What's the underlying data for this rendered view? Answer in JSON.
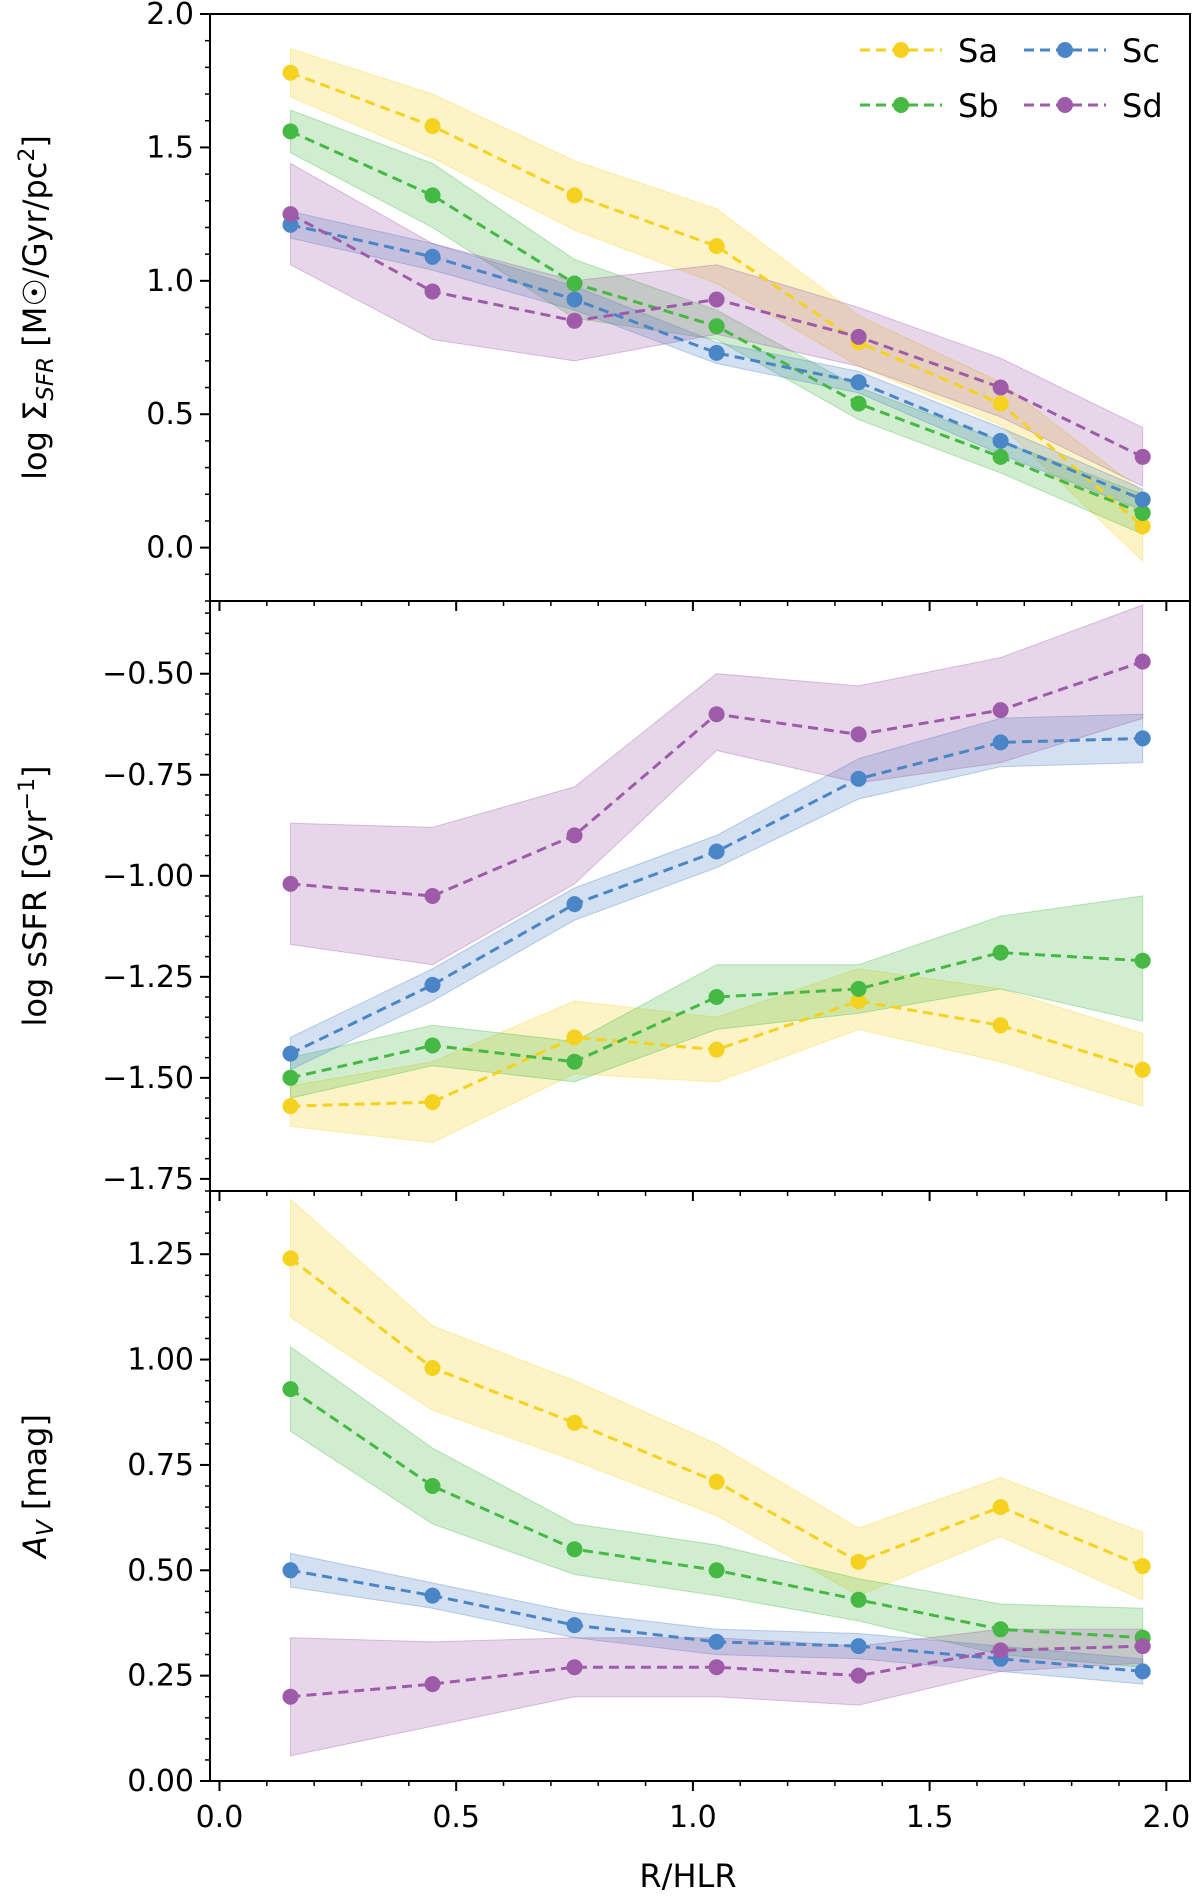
{
  "figure": {
    "xlabel": "R/HLR",
    "legend": [
      "Sa",
      "Sb",
      "Sc",
      "Sd"
    ]
  },
  "chart_data": [
    {
      "type": "line",
      "ylabel": "log Σ_SFR [M☉/Gyr/pc²]",
      "ylim": [
        -0.2,
        2.0
      ],
      "xlim": [
        -0.02,
        2.05
      ],
      "yticks": [
        "0.0",
        "0.5",
        "1.0",
        "1.5",
        "2.0"
      ],
      "ytick_values": [
        0.0,
        0.5,
        1.0,
        1.5,
        2.0
      ],
      "x": [
        0.15,
        0.45,
        0.75,
        1.05,
        1.35,
        1.65,
        1.95
      ],
      "legend_position": "top-right",
      "series": [
        {
          "name": "Sa",
          "color": "#f5d21f",
          "values": [
            1.78,
            1.58,
            1.32,
            1.13,
            0.77,
            0.54,
            0.08
          ],
          "lower": [
            1.69,
            1.46,
            1.19,
            0.99,
            0.68,
            0.46,
            -0.05
          ],
          "upper": [
            1.87,
            1.7,
            1.45,
            1.27,
            0.87,
            0.62,
            0.21
          ]
        },
        {
          "name": "Sb",
          "color": "#46b844",
          "values": [
            1.56,
            1.32,
            0.99,
            0.83,
            0.54,
            0.34,
            0.13
          ],
          "lower": [
            1.48,
            1.2,
            0.86,
            0.78,
            0.48,
            0.28,
            0.05
          ],
          "upper": [
            1.64,
            1.44,
            1.08,
            0.89,
            0.6,
            0.4,
            0.2
          ]
        },
        {
          "name": "Sc",
          "color": "#4a85c7",
          "values": [
            1.21,
            1.09,
            0.93,
            0.73,
            0.62,
            0.4,
            0.18
          ],
          "lower": [
            1.16,
            1.04,
            0.89,
            0.69,
            0.58,
            0.35,
            0.14
          ],
          "upper": [
            1.26,
            1.14,
            0.98,
            0.77,
            0.66,
            0.45,
            0.22
          ]
        },
        {
          "name": "Sd",
          "color": "#9e5ba9",
          "values": [
            1.25,
            0.96,
            0.85,
            0.93,
            0.79,
            0.6,
            0.34
          ],
          "lower": [
            1.06,
            0.78,
            0.7,
            0.8,
            0.68,
            0.49,
            0.23
          ],
          "upper": [
            1.44,
            1.14,
            1.0,
            1.06,
            0.9,
            0.71,
            0.45
          ]
        }
      ]
    },
    {
      "type": "line",
      "ylabel": "log sSFR [Gyr⁻¹]",
      "ylim": [
        -1.78,
        -0.32
      ],
      "xlim": [
        -0.02,
        2.05
      ],
      "yticks": [
        "−1.75",
        "−1.50",
        "−1.25",
        "−1.00",
        "−0.75",
        "−0.50"
      ],
      "ytick_values": [
        -1.75,
        -1.5,
        -1.25,
        -1.0,
        -0.75,
        -0.5
      ],
      "x": [
        0.15,
        0.45,
        0.75,
        1.05,
        1.35,
        1.65,
        1.95
      ],
      "series": [
        {
          "name": "Sa",
          "color": "#f5d21f",
          "values": [
            -1.57,
            -1.56,
            -1.4,
            -1.43,
            -1.31,
            -1.37,
            -1.48
          ],
          "lower": [
            -1.62,
            -1.66,
            -1.49,
            -1.51,
            -1.38,
            -1.46,
            -1.57
          ],
          "upper": [
            -1.52,
            -1.46,
            -1.31,
            -1.35,
            -1.23,
            -1.28,
            -1.39
          ]
        },
        {
          "name": "Sb",
          "color": "#46b844",
          "values": [
            -1.5,
            -1.42,
            -1.46,
            -1.3,
            -1.28,
            -1.19,
            -1.21
          ],
          "lower": [
            -1.55,
            -1.47,
            -1.51,
            -1.38,
            -1.34,
            -1.28,
            -1.36
          ],
          "upper": [
            -1.45,
            -1.37,
            -1.41,
            -1.22,
            -1.22,
            -1.1,
            -1.05
          ]
        },
        {
          "name": "Sc",
          "color": "#4a85c7",
          "values": [
            -1.44,
            -1.27,
            -1.07,
            -0.94,
            -0.76,
            -0.67,
            -0.66
          ],
          "lower": [
            -1.48,
            -1.31,
            -1.11,
            -0.98,
            -0.81,
            -0.73,
            -0.72
          ],
          "upper": [
            -1.4,
            -1.23,
            -1.03,
            -0.9,
            -0.71,
            -0.61,
            -0.6
          ]
        },
        {
          "name": "Sd",
          "color": "#9e5ba9",
          "values": [
            -1.02,
            -1.05,
            -0.9,
            -0.6,
            -0.65,
            -0.59,
            -0.47
          ],
          "lower": [
            -1.17,
            -1.22,
            -1.02,
            -0.69,
            -0.77,
            -0.72,
            -0.61
          ],
          "upper": [
            -0.87,
            -0.88,
            -0.78,
            -0.5,
            -0.53,
            -0.46,
            -0.33
          ]
        }
      ]
    },
    {
      "type": "line",
      "ylabel": "A_V [mag]",
      "ylim": [
        0.0,
        1.4
      ],
      "xlim": [
        -0.02,
        2.05
      ],
      "yticks": [
        "0.00",
        "0.25",
        "0.50",
        "0.75",
        "1.00",
        "1.25"
      ],
      "ytick_values": [
        0.0,
        0.25,
        0.5,
        0.75,
        1.0,
        1.25
      ],
      "x": [
        0.15,
        0.45,
        0.75,
        1.05,
        1.35,
        1.65,
        1.95
      ],
      "xticks": [
        "0.0",
        "0.5",
        "1.0",
        "1.5",
        "2.0"
      ],
      "xtick_values": [
        0.0,
        0.5,
        1.0,
        1.5,
        2.0
      ],
      "series": [
        {
          "name": "Sa",
          "color": "#f5d21f",
          "values": [
            1.24,
            0.98,
            0.85,
            0.71,
            0.52,
            0.65,
            0.51
          ],
          "lower": [
            1.1,
            0.88,
            0.76,
            0.63,
            0.44,
            0.58,
            0.43
          ],
          "upper": [
            1.38,
            1.08,
            0.95,
            0.8,
            0.6,
            0.72,
            0.59
          ]
        },
        {
          "name": "Sb",
          "color": "#46b844",
          "values": [
            0.93,
            0.7,
            0.55,
            0.5,
            0.43,
            0.36,
            0.34
          ],
          "lower": [
            0.83,
            0.61,
            0.49,
            0.44,
            0.38,
            0.3,
            0.27
          ],
          "upper": [
            1.03,
            0.79,
            0.61,
            0.56,
            0.48,
            0.42,
            0.41
          ]
        },
        {
          "name": "Sc",
          "color": "#4a85c7",
          "values": [
            0.5,
            0.44,
            0.37,
            0.33,
            0.32,
            0.29,
            0.26
          ],
          "lower": [
            0.46,
            0.41,
            0.34,
            0.3,
            0.29,
            0.26,
            0.23
          ],
          "upper": [
            0.54,
            0.47,
            0.4,
            0.36,
            0.35,
            0.32,
            0.29
          ]
        },
        {
          "name": "Sd",
          "color": "#9e5ba9",
          "values": [
            0.2,
            0.23,
            0.27,
            0.27,
            0.25,
            0.31,
            0.32
          ],
          "lower": [
            0.06,
            0.13,
            0.2,
            0.2,
            0.18,
            0.26,
            0.28
          ],
          "upper": [
            0.34,
            0.33,
            0.34,
            0.34,
            0.32,
            0.36,
            0.36
          ]
        }
      ]
    }
  ]
}
